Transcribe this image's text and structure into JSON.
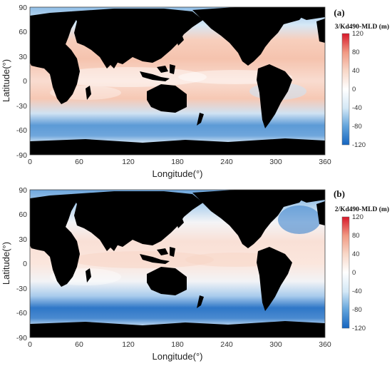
{
  "panels": [
    {
      "label": "(a)",
      "colorbar_title": "3/Kd490-MLD (m)",
      "xlabel": "Longitude(°)",
      "ylabel": "Latitude(°)",
      "xticks": [
        "0",
        "60",
        "120",
        "180",
        "240",
        "300",
        "360"
      ],
      "yticks": [
        "90",
        "60",
        "30",
        "0",
        "-30",
        "-60",
        "-90"
      ],
      "colorbar_ticks": [
        "120",
        "80",
        "40",
        "0",
        "-40",
        "-80",
        "-120"
      ]
    },
    {
      "label": "(b)",
      "colorbar_title": "2/Kd490-MLD (m)",
      "xlabel": "Longitude(°)",
      "ylabel": "Latitude(°)",
      "xticks": [
        "0",
        "60",
        "120",
        "180",
        "240",
        "300",
        "360"
      ],
      "yticks": [
        "90",
        "60",
        "30",
        "0",
        "-30",
        "-60",
        "-90"
      ],
      "colorbar_ticks": [
        "120",
        "80",
        "40",
        "0",
        "-40",
        "-80",
        "-120"
      ]
    }
  ],
  "map": {
    "xlim": [
      0,
      360
    ],
    "ylim": [
      -90,
      90
    ],
    "colorbar_range": [
      -120,
      120
    ],
    "land_color": "#000000",
    "colormap": [
      "#1565c0",
      "#64a5dc",
      "#d4e8f6",
      "#ffffff",
      "#f8d6c6",
      "#f19a84",
      "#d7182a"
    ]
  }
}
